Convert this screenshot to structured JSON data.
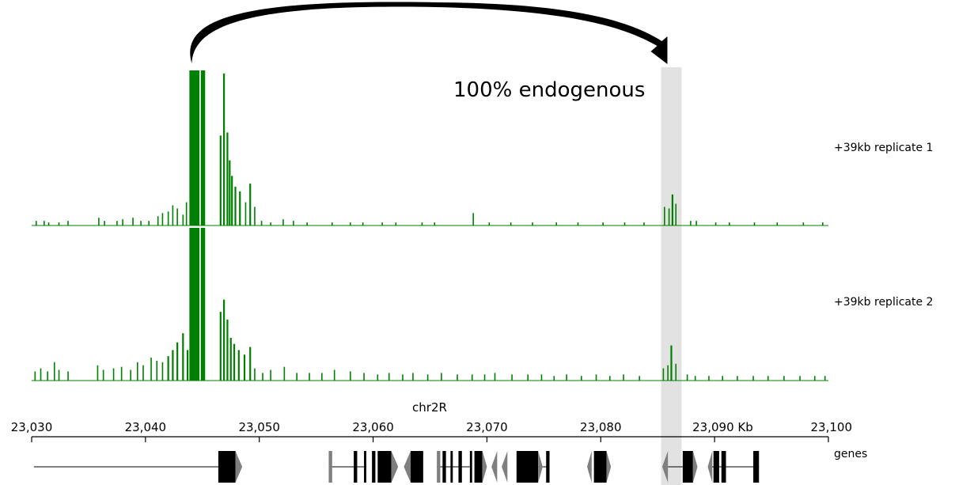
{
  "chart_data": {
    "type": "area",
    "chromosome": "chr2R",
    "unit": "Kb",
    "x_range": [
      23030,
      23100
    ],
    "x_ticks": [
      {
        "value": 23030,
        "label": "23,030"
      },
      {
        "value": 23040,
        "label": "23,040"
      },
      {
        "value": 23050,
        "label": "23,050"
      },
      {
        "value": 23060,
        "label": "23,060"
      },
      {
        "value": 23070,
        "label": "23,070"
      },
      {
        "value": 23080,
        "label": "23,080"
      },
      {
        "value": 23090,
        "label": "23,090 Kb"
      },
      {
        "value": 23100,
        "label": "23,100"
      }
    ],
    "annotation": {
      "text": "100% endogenous",
      "arrow_from_kb": 23044.9,
      "arrow_to_kb": 23086.2
    },
    "highlight_region_kb": [
      23085.3,
      23087.1
    ],
    "series": [
      {
        "name": "+39kb replicate 1",
        "color": "#008000",
        "peaks": [
          {
            "x": 23030.4,
            "y": 0.03
          },
          {
            "x": 23031.1,
            "y": 0.03
          },
          {
            "x": 23031.5,
            "y": 0.02
          },
          {
            "x": 23032.4,
            "y": 0.02
          },
          {
            "x": 23033.2,
            "y": 0.03
          },
          {
            "x": 23035.9,
            "y": 0.05
          },
          {
            "x": 23036.4,
            "y": 0.03
          },
          {
            "x": 23037.5,
            "y": 0.03
          },
          {
            "x": 23038.0,
            "y": 0.04
          },
          {
            "x": 23038.9,
            "y": 0.05
          },
          {
            "x": 23039.6,
            "y": 0.03
          },
          {
            "x": 23040.3,
            "y": 0.03
          },
          {
            "x": 23041.1,
            "y": 0.06
          },
          {
            "x": 23041.5,
            "y": 0.08
          },
          {
            "x": 23042.0,
            "y": 0.09
          },
          {
            "x": 23042.4,
            "y": 0.13
          },
          {
            "x": 23042.8,
            "y": 0.11
          },
          {
            "x": 23043.3,
            "y": 0.07
          },
          {
            "x": 23043.6,
            "y": 0.15
          },
          {
            "x": 23044.05,
            "y": 1.0
          },
          {
            "x": 23044.3,
            "y": 1.0
          },
          {
            "x": 23044.55,
            "y": 1.0
          },
          {
            "x": 23045.05,
            "y": 1.0
          },
          {
            "x": 23046.6,
            "y": 0.58
          },
          {
            "x": 23046.9,
            "y": 0.98
          },
          {
            "x": 23047.2,
            "y": 0.6
          },
          {
            "x": 23047.4,
            "y": 0.42
          },
          {
            "x": 23047.6,
            "y": 0.32
          },
          {
            "x": 23047.9,
            "y": 0.25
          },
          {
            "x": 23048.3,
            "y": 0.22
          },
          {
            "x": 23048.8,
            "y": 0.15
          },
          {
            "x": 23049.2,
            "y": 0.27
          },
          {
            "x": 23049.6,
            "y": 0.12
          },
          {
            "x": 23050.2,
            "y": 0.03
          },
          {
            "x": 23051.0,
            "y": 0.02
          },
          {
            "x": 23052.1,
            "y": 0.04
          },
          {
            "x": 23053.0,
            "y": 0.03
          },
          {
            "x": 23054.2,
            "y": 0.02
          },
          {
            "x": 23056.4,
            "y": 0.02
          },
          {
            "x": 23058.0,
            "y": 0.02
          },
          {
            "x": 23059.1,
            "y": 0.02
          },
          {
            "x": 23060.8,
            "y": 0.02
          },
          {
            "x": 23062.0,
            "y": 0.02
          },
          {
            "x": 23064.3,
            "y": 0.02
          },
          {
            "x": 23065.4,
            "y": 0.02
          },
          {
            "x": 23068.8,
            "y": 0.08
          },
          {
            "x": 23070.2,
            "y": 0.02
          },
          {
            "x": 23072.1,
            "y": 0.02
          },
          {
            "x": 23074.0,
            "y": 0.02
          },
          {
            "x": 23076.1,
            "y": 0.02
          },
          {
            "x": 23078.0,
            "y": 0.02
          },
          {
            "x": 23080.2,
            "y": 0.02
          },
          {
            "x": 23082.1,
            "y": 0.02
          },
          {
            "x": 23083.8,
            "y": 0.02
          },
          {
            "x": 23085.6,
            "y": 0.12
          },
          {
            "x": 23086.0,
            "y": 0.11
          },
          {
            "x": 23086.3,
            "y": 0.2
          },
          {
            "x": 23086.6,
            "y": 0.14
          },
          {
            "x": 23087.9,
            "y": 0.03
          },
          {
            "x": 23088.4,
            "y": 0.03
          },
          {
            "x": 23090.1,
            "y": 0.02
          },
          {
            "x": 23091.3,
            "y": 0.02
          },
          {
            "x": 23093.5,
            "y": 0.02
          },
          {
            "x": 23095.5,
            "y": 0.02
          },
          {
            "x": 23097.8,
            "y": 0.02
          },
          {
            "x": 23099.5,
            "y": 0.02
          }
        ]
      },
      {
        "name": "+39kb replicate 2",
        "color": "#008000",
        "peaks": [
          {
            "x": 23030.3,
            "y": 0.06
          },
          {
            "x": 23030.8,
            "y": 0.08
          },
          {
            "x": 23031.4,
            "y": 0.06
          },
          {
            "x": 23032.0,
            "y": 0.12
          },
          {
            "x": 23032.4,
            "y": 0.07
          },
          {
            "x": 23033.2,
            "y": 0.06
          },
          {
            "x": 23035.8,
            "y": 0.1
          },
          {
            "x": 23036.3,
            "y": 0.07
          },
          {
            "x": 23037.2,
            "y": 0.08
          },
          {
            "x": 23037.9,
            "y": 0.09
          },
          {
            "x": 23038.7,
            "y": 0.07
          },
          {
            "x": 23039.3,
            "y": 0.12
          },
          {
            "x": 23039.8,
            "y": 0.1
          },
          {
            "x": 23040.5,
            "y": 0.15
          },
          {
            "x": 23041.0,
            "y": 0.13
          },
          {
            "x": 23041.5,
            "y": 0.12
          },
          {
            "x": 23042.0,
            "y": 0.16
          },
          {
            "x": 23042.4,
            "y": 0.2
          },
          {
            "x": 23042.8,
            "y": 0.25
          },
          {
            "x": 23043.3,
            "y": 0.31
          },
          {
            "x": 23043.7,
            "y": 0.2
          },
          {
            "x": 23044.05,
            "y": 1.0
          },
          {
            "x": 23044.3,
            "y": 1.0
          },
          {
            "x": 23044.55,
            "y": 1.0
          },
          {
            "x": 23045.05,
            "y": 1.0
          },
          {
            "x": 23046.6,
            "y": 0.45
          },
          {
            "x": 23046.9,
            "y": 0.53
          },
          {
            "x": 23047.2,
            "y": 0.4
          },
          {
            "x": 23047.5,
            "y": 0.28
          },
          {
            "x": 23047.8,
            "y": 0.24
          },
          {
            "x": 23048.2,
            "y": 0.2
          },
          {
            "x": 23048.7,
            "y": 0.17
          },
          {
            "x": 23049.2,
            "y": 0.22
          },
          {
            "x": 23049.6,
            "y": 0.08
          },
          {
            "x": 23050.3,
            "y": 0.05
          },
          {
            "x": 23051.0,
            "y": 0.07
          },
          {
            "x": 23052.2,
            "y": 0.09
          },
          {
            "x": 23053.3,
            "y": 0.05
          },
          {
            "x": 23054.4,
            "y": 0.05
          },
          {
            "x": 23055.5,
            "y": 0.05
          },
          {
            "x": 23056.6,
            "y": 0.07
          },
          {
            "x": 23058.0,
            "y": 0.06
          },
          {
            "x": 23059.2,
            "y": 0.05
          },
          {
            "x": 23060.4,
            "y": 0.04
          },
          {
            "x": 23061.4,
            "y": 0.05
          },
          {
            "x": 23062.6,
            "y": 0.04
          },
          {
            "x": 23063.5,
            "y": 0.05
          },
          {
            "x": 23064.8,
            "y": 0.04
          },
          {
            "x": 23066.0,
            "y": 0.05
          },
          {
            "x": 23067.4,
            "y": 0.04
          },
          {
            "x": 23068.7,
            "y": 0.04
          },
          {
            "x": 23069.8,
            "y": 0.04
          },
          {
            "x": 23070.7,
            "y": 0.05
          },
          {
            "x": 23072.2,
            "y": 0.04
          },
          {
            "x": 23073.6,
            "y": 0.04
          },
          {
            "x": 23074.8,
            "y": 0.04
          },
          {
            "x": 23075.9,
            "y": 0.03
          },
          {
            "x": 23077.0,
            "y": 0.04
          },
          {
            "x": 23078.3,
            "y": 0.03
          },
          {
            "x": 23079.6,
            "y": 0.04
          },
          {
            "x": 23080.8,
            "y": 0.03
          },
          {
            "x": 23082.0,
            "y": 0.04
          },
          {
            "x": 23083.4,
            "y": 0.03
          },
          {
            "x": 23085.5,
            "y": 0.08
          },
          {
            "x": 23085.9,
            "y": 0.1
          },
          {
            "x": 23086.2,
            "y": 0.23
          },
          {
            "x": 23086.6,
            "y": 0.11
          },
          {
            "x": 23087.6,
            "y": 0.04
          },
          {
            "x": 23088.3,
            "y": 0.03
          },
          {
            "x": 23089.5,
            "y": 0.03
          },
          {
            "x": 23090.7,
            "y": 0.03
          },
          {
            "x": 23092.0,
            "y": 0.03
          },
          {
            "x": 23093.4,
            "y": 0.03
          },
          {
            "x": 23094.7,
            "y": 0.03
          },
          {
            "x": 23096.1,
            "y": 0.03
          },
          {
            "x": 23097.5,
            "y": 0.03
          },
          {
            "x": 23098.8,
            "y": 0.03
          },
          {
            "x": 23099.7,
            "y": 0.03
          }
        ]
      }
    ],
    "genes_track": {
      "label": "genes",
      "intron_color": "#000000",
      "exon_color": "#000000",
      "utr_color": "#7f7f7f",
      "introns": [
        {
          "start": 23030.2,
          "end": 23046.4
        },
        {
          "start": 23056.1,
          "end": 23059.4
        },
        {
          "start": 23065.6,
          "end": 23068.5
        },
        {
          "start": 23072.6,
          "end": 23075.5
        },
        {
          "start": 23085.9,
          "end": 23087.2
        },
        {
          "start": 23089.5,
          "end": 23093.9
        }
      ],
      "blocks": [
        {
          "start": 23046.4,
          "end": 23047.9,
          "kind": "exon"
        },
        {
          "start": 23047.9,
          "end": 23048.5,
          "kind": "utr-arrow-right"
        },
        {
          "start": 23056.1,
          "end": 23056.4,
          "kind": "utr"
        },
        {
          "start": 23058.3,
          "end": 23058.6,
          "kind": "exon"
        },
        {
          "start": 23059.2,
          "end": 23059.4,
          "kind": "exon"
        },
        {
          "start": 23059.9,
          "end": 23060.2,
          "kind": "exon"
        },
        {
          "start": 23060.4,
          "end": 23061.6,
          "kind": "exon"
        },
        {
          "start": 23061.6,
          "end": 23062.2,
          "kind": "utr-arrow-right"
        },
        {
          "start": 23062.7,
          "end": 23063.3,
          "kind": "utr-arrow-left"
        },
        {
          "start": 23063.3,
          "end": 23064.4,
          "kind": "exon"
        },
        {
          "start": 23065.6,
          "end": 23065.9,
          "kind": "utr"
        },
        {
          "start": 23066.1,
          "end": 23066.4,
          "kind": "exon"
        },
        {
          "start": 23066.8,
          "end": 23067.0,
          "kind": "exon"
        },
        {
          "start": 23067.5,
          "end": 23067.8,
          "kind": "exon"
        },
        {
          "start": 23068.5,
          "end": 23068.7,
          "kind": "exon"
        },
        {
          "start": 23068.9,
          "end": 23069.6,
          "kind": "exon"
        },
        {
          "start": 23069.6,
          "end": 23070.0,
          "kind": "utr-arrow-right"
        },
        {
          "start": 23070.4,
          "end": 23070.9,
          "kind": "utr-arrow-left"
        },
        {
          "start": 23071.3,
          "end": 23071.8,
          "kind": "utr-arrow-left"
        },
        {
          "start": 23072.6,
          "end": 23074.5,
          "kind": "exon"
        },
        {
          "start": 23074.5,
          "end": 23074.9,
          "kind": "utr-arrow-right"
        },
        {
          "start": 23075.2,
          "end": 23075.5,
          "kind": "exon"
        },
        {
          "start": 23078.8,
          "end": 23079.2,
          "kind": "utr-arrow-left"
        },
        {
          "start": 23079.4,
          "end": 23080.5,
          "kind": "exon"
        },
        {
          "start": 23080.5,
          "end": 23080.9,
          "kind": "utr-arrow-right"
        },
        {
          "start": 23085.4,
          "end": 23085.9,
          "kind": "utr-arrow-left"
        },
        {
          "start": 23087.2,
          "end": 23088.1,
          "kind": "exon"
        },
        {
          "start": 23088.1,
          "end": 23088.5,
          "kind": "utr-arrow-right"
        },
        {
          "start": 23089.4,
          "end": 23089.8,
          "kind": "utr-arrow-left"
        },
        {
          "start": 23089.9,
          "end": 23090.4,
          "kind": "exon"
        },
        {
          "start": 23090.6,
          "end": 23091.0,
          "kind": "exon"
        },
        {
          "start": 23093.4,
          "end": 23093.9,
          "kind": "exon"
        }
      ]
    }
  }
}
